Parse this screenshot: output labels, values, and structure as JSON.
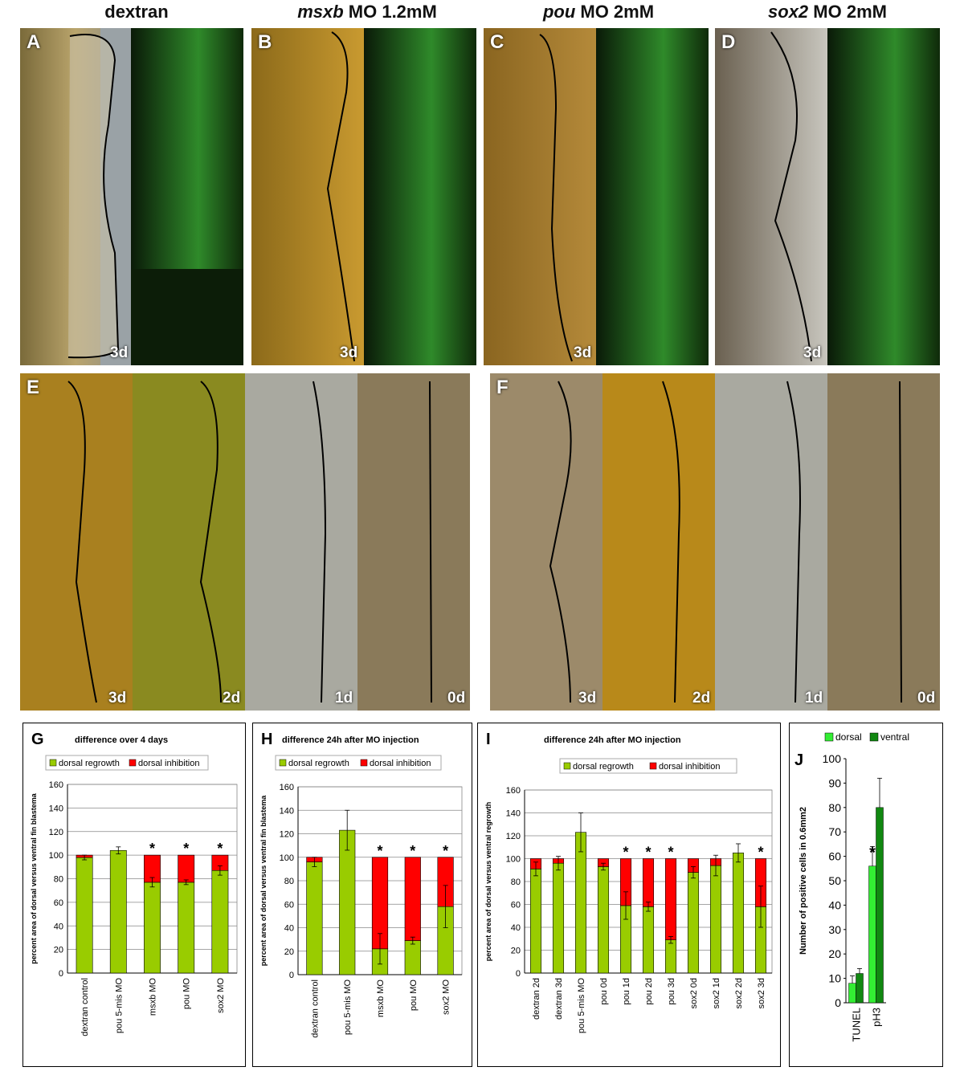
{
  "column_titles": [
    {
      "italic": "",
      "rest": "dextran"
    },
    {
      "italic": "msxb",
      "rest": " MO 1.2mM"
    },
    {
      "italic": "pou",
      "rest": " MO 2mM"
    },
    {
      "italic": "sox2",
      "rest": " MO 2mM"
    }
  ],
  "panels_top": [
    {
      "letter": "A",
      "day": "3d"
    },
    {
      "letter": "B",
      "day": "3d"
    },
    {
      "letter": "C",
      "day": "3d"
    },
    {
      "letter": "D",
      "day": "3d"
    }
  ],
  "panels_mid": [
    {
      "letter": "E",
      "days": [
        "3d",
        "2d",
        "1d",
        "0d"
      ]
    },
    {
      "letter": "F",
      "days": [
        "3d",
        "2d",
        "1d",
        "0d"
      ]
    }
  ],
  "colors": {
    "regrowth": "#99cc00",
    "inhibition": "#ff0000",
    "dorsal": "#33ee33",
    "ventral": "#118811"
  },
  "chart_data": [
    {
      "panel": "G",
      "type": "bar",
      "stacked": true,
      "title": "difference over 4 days",
      "ylabel": "percent area of dorsal versus ventral fin blastema",
      "ylim": [
        0,
        160
      ],
      "yticks": [
        0,
        20,
        40,
        60,
        80,
        100,
        120,
        140,
        160
      ],
      "legend": [
        "dorsal regrowth",
        "dorsal inhibition"
      ],
      "categories": [
        "dextran control",
        "pou 5-mis MO",
        "msxb MO",
        "pou MO",
        "sox2 MO"
      ],
      "series": [
        {
          "name": "dorsal regrowth",
          "values": [
            98,
            104,
            77,
            77,
            87
          ]
        },
        {
          "name": "dorsal inhibition",
          "values": [
            2,
            0,
            23,
            23,
            13
          ]
        }
      ],
      "errors": [
        2,
        3,
        4,
        2,
        4
      ],
      "significant": [
        false,
        false,
        true,
        true,
        true
      ]
    },
    {
      "panel": "H",
      "type": "bar",
      "stacked": true,
      "title": "difference 24h after MO injection",
      "ylabel": "percent area of dorsal versus ventral fin blastema",
      "ylim": [
        0,
        160
      ],
      "yticks": [
        0,
        20,
        40,
        60,
        80,
        100,
        120,
        140,
        160
      ],
      "legend": [
        "dorsal regrowth",
        "dorsal inhibition"
      ],
      "categories": [
        "dextran control",
        "pou 5-mis MO",
        "msxb MO",
        "pou MO",
        "sox2 MO"
      ],
      "series": [
        {
          "name": "dorsal regrowth",
          "values": [
            96,
            123,
            22,
            29,
            58
          ]
        },
        {
          "name": "dorsal inhibition",
          "values": [
            4,
            0,
            78,
            71,
            42
          ]
        }
      ],
      "errors": [
        4,
        17,
        13,
        3,
        18
      ],
      "significant": [
        false,
        false,
        true,
        true,
        true
      ]
    },
    {
      "panel": "I",
      "type": "bar",
      "stacked": true,
      "title": "difference 24h after MO injection",
      "ylabel": "percent area of dorsal versus ventral regrowth",
      "ylim": [
        0,
        160
      ],
      "yticks": [
        0,
        20,
        40,
        60,
        80,
        100,
        120,
        140,
        160
      ],
      "legend": [
        "dorsal regrowth",
        "dorsal inhibition"
      ],
      "categories": [
        "dextran 2d",
        "dextran 3d",
        "pou 5-mis MO",
        "pou 0d",
        "pou 1d",
        "pou 2d",
        "pou 3d",
        "sox2 0d",
        "sox2 1d",
        "sox2 2d",
        "sox2 3d"
      ],
      "series": [
        {
          "name": "dorsal regrowth",
          "values": [
            91,
            96,
            123,
            93,
            59,
            58,
            29,
            88,
            94,
            105,
            58
          ]
        },
        {
          "name": "dorsal inhibition",
          "values": [
            9,
            4,
            0,
            7,
            41,
            42,
            71,
            12,
            6,
            0,
            42
          ]
        }
      ],
      "errors": [
        6,
        6,
        17,
        3,
        12,
        4,
        3,
        5,
        9,
        8,
        18
      ],
      "significant": [
        false,
        false,
        false,
        false,
        true,
        true,
        true,
        false,
        false,
        false,
        true
      ]
    },
    {
      "panel": "J",
      "type": "bar",
      "stacked": false,
      "ylabel": "Number of positive cells in 0.6mm2",
      "ylim": [
        0,
        100
      ],
      "yticks": [
        0,
        10,
        20,
        30,
        40,
        50,
        60,
        70,
        80,
        90,
        100
      ],
      "legend": [
        "dorsal",
        "ventral"
      ],
      "categories": [
        "TUNEL",
        "pH3"
      ],
      "series": [
        {
          "name": "dorsal",
          "values": [
            8,
            56
          ]
        },
        {
          "name": "ventral",
          "values": [
            12,
            80
          ]
        }
      ],
      "errors": [
        [
          3,
          8
        ],
        [
          2,
          12
        ]
      ],
      "significant": [
        false,
        true
      ]
    }
  ]
}
